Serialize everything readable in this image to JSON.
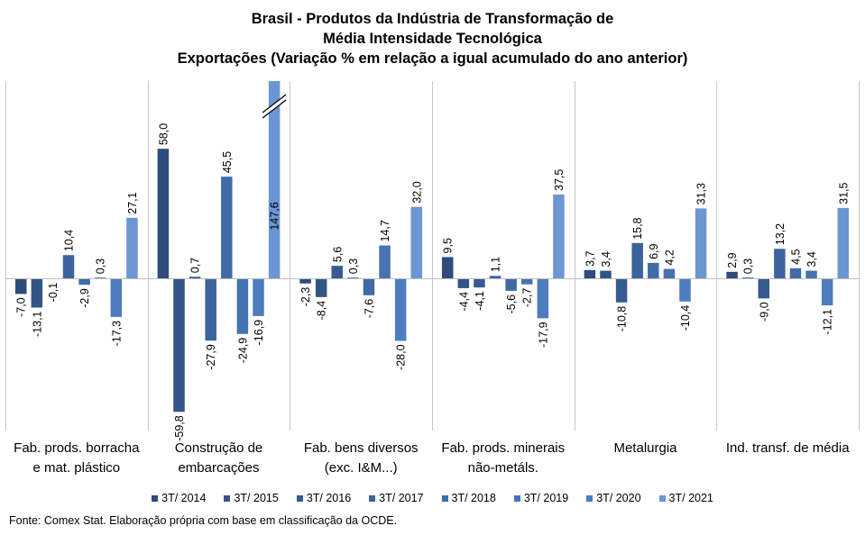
{
  "chart_data": {
    "type": "bar",
    "title_lines": [
      "Brasil - Produtos da Indústria de Transformação de",
      "Média Intensidade Tecnológica",
      "Exportações (Variação % em relação a igual acumulado do ano anterior)"
    ],
    "categories": [
      [
        "Fab. prods. borracha",
        "e mat. plástico"
      ],
      [
        "Construção de",
        "embarcações"
      ],
      [
        "Fab. bens diversos",
        "(exc. I&M...)"
      ],
      [
        "Fab. prods. minerais",
        "não-metáls."
      ],
      [
        "Metalurgia"
      ],
      [
        "Ind. transf. de média"
      ]
    ],
    "series": [
      {
        "name": "3T/ 2014",
        "color": "#2e4c7c",
        "values": [
          -7.0,
          58.0,
          -2.3,
          9.5,
          3.7,
          2.9
        ],
        "labels": [
          "-7,0",
          "58,0",
          "-2,3",
          "9,5",
          "3,7",
          "2,9"
        ]
      },
      {
        "name": "3T/ 2015",
        "color": "#335486",
        "values": [
          -13.1,
          -59.8,
          -8.4,
          -4.4,
          3.4,
          0.3
        ],
        "labels": [
          "-13,1",
          "-59,8",
          "-8,4",
          "-4,4",
          "3,4",
          "0,3"
        ]
      },
      {
        "name": "3T/ 2016",
        "color": "#375b90",
        "values": [
          -0.1,
          0.7,
          5.6,
          -4.1,
          -10.8,
          -9.0
        ],
        "labels": [
          "-0,1",
          "0,7",
          "5,6",
          "-4,1",
          "-10,8",
          "-9,0"
        ]
      },
      {
        "name": "3T/ 2017",
        "color": "#3c639c",
        "values": [
          10.4,
          -27.9,
          0.3,
          1.1,
          15.8,
          13.2
        ],
        "labels": [
          "10,4",
          "-27,9",
          "0,3",
          "1,1",
          "15,8",
          "13,2"
        ]
      },
      {
        "name": "3T/ 2018",
        "color": "#416ba8",
        "values": [
          -2.9,
          45.5,
          -7.6,
          -5.6,
          6.9,
          4.5
        ],
        "labels": [
          "-2,9",
          "45,5",
          "-7,6",
          "-5,6",
          "6,9",
          "4,5"
        ]
      },
      {
        "name": "3T/ 2019",
        "color": "#4672b2",
        "values": [
          0.3,
          -24.9,
          14.7,
          -2.7,
          4.2,
          3.4
        ],
        "labels": [
          "0,3",
          "-24,9",
          "14,7",
          "-2,7",
          "4,2",
          "3,4"
        ]
      },
      {
        "name": "3T/ 2020",
        "color": "#4d7cbf",
        "values": [
          -17.3,
          -16.9,
          -28.0,
          -17.9,
          -10.4,
          -12.1
        ],
        "labels": [
          "-17,3",
          "-16,9",
          "-28,0",
          "-17,9",
          "-10,4",
          "-12,1"
        ]
      },
      {
        "name": "3T/ 2021",
        "color": "#6c96d3",
        "values": [
          27.1,
          147.6,
          32.0,
          37.5,
          31.3,
          31.5
        ],
        "labels": [
          "27,1",
          "147,6",
          "32,0",
          "37,5",
          "31,3",
          "31,5"
        ]
      }
    ],
    "ylim": [
      -80,
      60
    ],
    "axis_break": {
      "category_index": 1,
      "series_index": 7
    },
    "grid": false,
    "legend": "bottom",
    "source": "Fonte: Comex Stat. Elaboração própria com base em classificação da OCDE."
  }
}
